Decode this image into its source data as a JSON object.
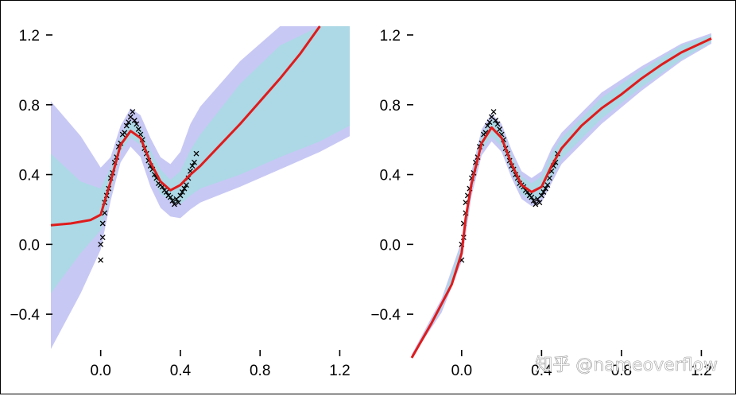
{
  "chart_data": [
    {
      "type": "line",
      "title": "",
      "xlabel": "",
      "ylabel": "",
      "xlim": [
        -0.25,
        1.25
      ],
      "ylim": [
        -0.65,
        1.25
      ],
      "xticks": [
        "0.0",
        "0.4",
        "0.8",
        "1.2"
      ],
      "yticks": [
        "1.2",
        "0.8",
        "0.4",
        "0.0",
        "−0.4"
      ],
      "grid": false,
      "legend": "none",
      "colors": {
        "mean": "#e01b1b",
        "inner_band": "#add8e6",
        "outer_band": "#c8c8f5",
        "points": "#000000"
      },
      "series": [
        {
          "kind": "mean",
          "x": [
            -0.25,
            -0.15,
            -0.05,
            0.0,
            0.05,
            0.1,
            0.15,
            0.2,
            0.25,
            0.3,
            0.35,
            0.4,
            0.45,
            0.5,
            0.6,
            0.7,
            0.8,
            0.9,
            1.0,
            1.1
          ],
          "y": [
            0.11,
            0.12,
            0.14,
            0.17,
            0.36,
            0.57,
            0.65,
            0.61,
            0.47,
            0.36,
            0.31,
            0.34,
            0.4,
            0.45,
            0.57,
            0.69,
            0.82,
            0.95,
            1.09,
            1.25
          ]
        },
        {
          "kind": "inner_band",
          "x": [
            -0.25,
            -0.1,
            0.0,
            0.05,
            0.1,
            0.15,
            0.2,
            0.25,
            0.3,
            0.35,
            0.4,
            0.45,
            0.5,
            0.7,
            0.9,
            1.1,
            1.25
          ],
          "lower": [
            -0.28,
            -0.05,
            0.08,
            0.3,
            0.53,
            0.61,
            0.57,
            0.41,
            0.29,
            0.25,
            0.23,
            0.28,
            0.32,
            0.4,
            0.5,
            0.59,
            0.68
          ],
          "upper": [
            0.52,
            0.36,
            0.32,
            0.44,
            0.62,
            0.71,
            0.67,
            0.54,
            0.43,
            0.37,
            0.42,
            0.54,
            0.63,
            0.92,
            1.14,
            1.25,
            1.25
          ]
        },
        {
          "kind": "outer_band",
          "x": [
            -0.25,
            -0.1,
            0.0,
            0.05,
            0.1,
            0.15,
            0.2,
            0.25,
            0.3,
            0.35,
            0.4,
            0.45,
            0.5,
            0.7,
            0.9,
            1.1,
            1.25
          ],
          "lower": [
            -0.6,
            -0.28,
            -0.03,
            0.25,
            0.47,
            0.56,
            0.5,
            0.33,
            0.21,
            0.16,
            0.15,
            0.2,
            0.24,
            0.33,
            0.43,
            0.53,
            0.62
          ],
          "upper": [
            0.82,
            0.62,
            0.44,
            0.5,
            0.68,
            0.78,
            0.74,
            0.61,
            0.5,
            0.46,
            0.53,
            0.69,
            0.79,
            1.05,
            1.25,
            1.25,
            1.25
          ]
        },
        {
          "kind": "points",
          "x": [
            0.0,
            0.0,
            0.01,
            0.01,
            0.02,
            0.02,
            0.03,
            0.04,
            0.05,
            0.06,
            0.07,
            0.08,
            0.09,
            0.1,
            0.11,
            0.12,
            0.13,
            0.14,
            0.15,
            0.16,
            0.17,
            0.18,
            0.19,
            0.2,
            0.21,
            0.22,
            0.23,
            0.24,
            0.25,
            0.26,
            0.27,
            0.28,
            0.29,
            0.3,
            0.31,
            0.32,
            0.33,
            0.34,
            0.35,
            0.36,
            0.37,
            0.38,
            0.39,
            0.4,
            0.41,
            0.42,
            0.43,
            0.44,
            0.45,
            0.46,
            0.47,
            0.48
          ],
          "y": [
            -0.09,
            0.0,
            0.04,
            0.12,
            0.18,
            0.24,
            0.28,
            0.32,
            0.38,
            0.41,
            0.47,
            0.5,
            0.56,
            0.58,
            0.63,
            0.64,
            0.68,
            0.7,
            0.73,
            0.76,
            0.71,
            0.69,
            0.66,
            0.63,
            0.6,
            0.55,
            0.52,
            0.48,
            0.45,
            0.43,
            0.4,
            0.38,
            0.35,
            0.34,
            0.33,
            0.31,
            0.3,
            0.28,
            0.27,
            0.25,
            0.23,
            0.26,
            0.24,
            0.28,
            0.3,
            0.32,
            0.34,
            0.38,
            0.42,
            0.45,
            0.47,
            0.52
          ]
        }
      ]
    },
    {
      "type": "line",
      "title": "",
      "xlabel": "",
      "ylabel": "",
      "xlim": [
        -0.25,
        1.25
      ],
      "ylim": [
        -0.65,
        1.25
      ],
      "xticks": [
        "0.0",
        "0.4",
        "0.8",
        "1.2"
      ],
      "yticks": [
        "1.2",
        "0.8",
        "0.4",
        "0.0",
        "−0.4"
      ],
      "grid": false,
      "legend": "none",
      "colors": {
        "mean": "#e01b1b",
        "inner_band": "#add8e6",
        "outer_band": "#c8c8f5",
        "points": "#000000"
      },
      "series": [
        {
          "kind": "mean",
          "x": [
            -0.25,
            -0.15,
            -0.05,
            0.0,
            0.02,
            0.05,
            0.1,
            0.15,
            0.2,
            0.25,
            0.3,
            0.35,
            0.4,
            0.45,
            0.5,
            0.6,
            0.7,
            0.8,
            0.9,
            1.0,
            1.1,
            1.25
          ],
          "y": [
            -0.65,
            -0.45,
            -0.23,
            -0.05,
            0.15,
            0.35,
            0.58,
            0.67,
            0.61,
            0.46,
            0.34,
            0.3,
            0.33,
            0.45,
            0.55,
            0.68,
            0.78,
            0.86,
            0.95,
            1.03,
            1.1,
            1.18
          ]
        },
        {
          "kind": "inner_band",
          "x": [
            -0.25,
            -0.1,
            0.0,
            0.05,
            0.1,
            0.15,
            0.2,
            0.25,
            0.3,
            0.35,
            0.4,
            0.45,
            0.5,
            0.7,
            0.9,
            1.1,
            1.25
          ],
          "lower": [
            -0.66,
            -0.37,
            -0.08,
            0.31,
            0.54,
            0.62,
            0.56,
            0.41,
            0.29,
            0.25,
            0.27,
            0.38,
            0.49,
            0.72,
            0.9,
            1.06,
            1.16
          ],
          "upper": [
            -0.64,
            -0.33,
            0.0,
            0.39,
            0.63,
            0.72,
            0.66,
            0.51,
            0.39,
            0.35,
            0.39,
            0.52,
            0.61,
            0.84,
            1.0,
            1.14,
            1.2
          ]
        },
        {
          "kind": "outer_band",
          "x": [
            -0.25,
            -0.1,
            0.0,
            0.05,
            0.1,
            0.15,
            0.2,
            0.25,
            0.3,
            0.35,
            0.4,
            0.45,
            0.5,
            0.7,
            0.9,
            1.1,
            1.25
          ],
          "lower": [
            -0.67,
            -0.39,
            -0.1,
            0.28,
            0.51,
            0.59,
            0.53,
            0.38,
            0.26,
            0.22,
            0.24,
            0.35,
            0.46,
            0.69,
            0.88,
            1.05,
            1.15
          ],
          "upper": [
            -0.63,
            -0.31,
            0.02,
            0.42,
            0.66,
            0.75,
            0.69,
            0.54,
            0.42,
            0.38,
            0.42,
            0.55,
            0.64,
            0.87,
            1.02,
            1.15,
            1.21
          ]
        },
        {
          "kind": "points",
          "x": [
            0.0,
            0.0,
            0.01,
            0.01,
            0.02,
            0.02,
            0.03,
            0.04,
            0.05,
            0.06,
            0.07,
            0.08,
            0.09,
            0.1,
            0.11,
            0.12,
            0.13,
            0.14,
            0.15,
            0.16,
            0.17,
            0.18,
            0.19,
            0.2,
            0.21,
            0.22,
            0.23,
            0.24,
            0.25,
            0.26,
            0.27,
            0.28,
            0.29,
            0.3,
            0.31,
            0.32,
            0.33,
            0.34,
            0.35,
            0.36,
            0.37,
            0.38,
            0.39,
            0.4,
            0.41,
            0.42,
            0.43,
            0.44,
            0.45,
            0.46,
            0.47,
            0.48
          ],
          "y": [
            -0.09,
            0.0,
            0.04,
            0.12,
            0.18,
            0.24,
            0.28,
            0.32,
            0.38,
            0.41,
            0.47,
            0.5,
            0.56,
            0.58,
            0.63,
            0.64,
            0.68,
            0.7,
            0.73,
            0.76,
            0.71,
            0.69,
            0.66,
            0.63,
            0.6,
            0.55,
            0.52,
            0.48,
            0.45,
            0.43,
            0.4,
            0.38,
            0.35,
            0.34,
            0.33,
            0.31,
            0.3,
            0.28,
            0.27,
            0.25,
            0.23,
            0.26,
            0.24,
            0.28,
            0.3,
            0.32,
            0.34,
            0.38,
            0.42,
            0.45,
            0.47,
            0.52
          ]
        }
      ]
    }
  ],
  "watermark": "知乎 @nameoverflow"
}
